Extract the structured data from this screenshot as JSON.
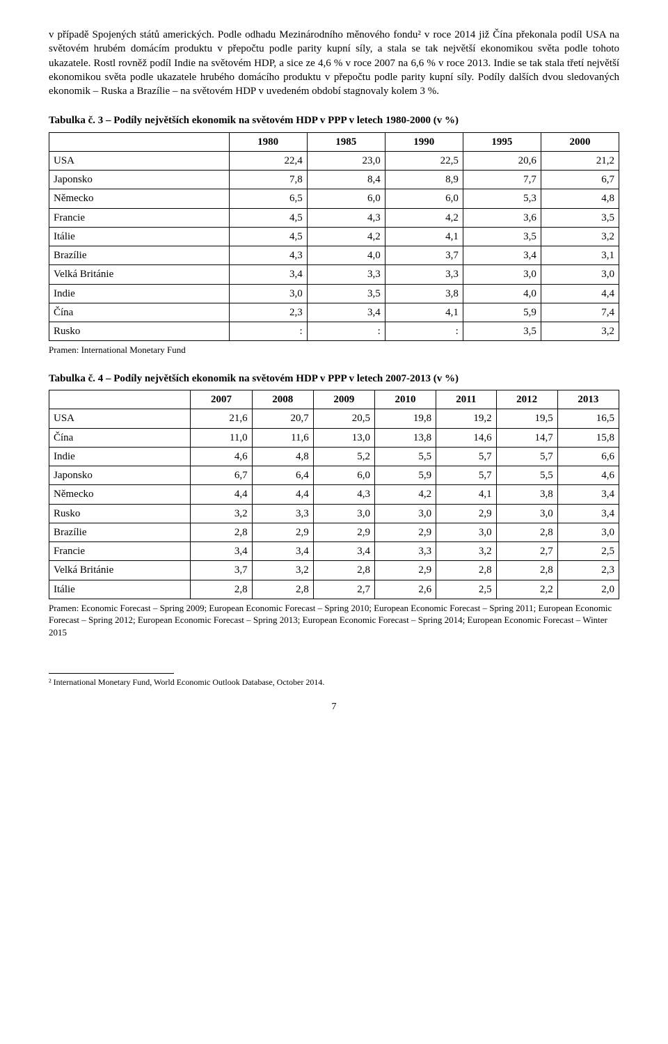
{
  "paragraph": "v případě Spojených států amerických. Podle odhadu Mezinárodního měnového fondu² v roce 2014 již Čína překonala podíl USA na světovém hrubém domácím produktu v přepočtu podle parity kupní síly, a stala se tak největší ekonomikou světa podle tohoto ukazatele. Rostl rovněž podíl Indie na světovém HDP, a sice ze 4,6 % v roce 2007 na 6,6 % v roce 2013. Indie se tak stala třetí největší ekonomikou světa podle ukazatele hrubého domácího produktu v přepočtu podle parity kupní síly. Podíly dalších dvou sledovaných ekonomik – Ruska a Brazílie – na světovém HDP v uvedeném období stagnovaly kolem 3 %.",
  "table3": {
    "title": "Tabulka č. 3 – Podíly největších ekonomik na světovém HDP v PPP v letech 1980-2000 (v %)",
    "years": [
      "1980",
      "1985",
      "1990",
      "1995",
      "2000"
    ],
    "rows": [
      {
        "label": "USA",
        "vals": [
          "22,4",
          "23,0",
          "22,5",
          "20,6",
          "21,2"
        ]
      },
      {
        "label": "Japonsko",
        "vals": [
          "7,8",
          "8,4",
          "8,9",
          "7,7",
          "6,7"
        ]
      },
      {
        "label": "Německo",
        "vals": [
          "6,5",
          "6,0",
          "6,0",
          "5,3",
          "4,8"
        ]
      },
      {
        "label": "Francie",
        "vals": [
          "4,5",
          "4,3",
          "4,2",
          "3,6",
          "3,5"
        ]
      },
      {
        "label": "Itálie",
        "vals": [
          "4,5",
          "4,2",
          "4,1",
          "3,5",
          "3,2"
        ]
      },
      {
        "label": "Brazílie",
        "vals": [
          "4,3",
          "4,0",
          "3,7",
          "3,4",
          "3,1"
        ]
      },
      {
        "label": "Velká Británie",
        "vals": [
          "3,4",
          "3,3",
          "3,3",
          "3,0",
          "3,0"
        ]
      },
      {
        "label": "Indie",
        "vals": [
          "3,0",
          "3,5",
          "3,8",
          "4,0",
          "4,4"
        ]
      },
      {
        "label": "Čína",
        "vals": [
          "2,3",
          "3,4",
          "4,1",
          "5,9",
          "7,4"
        ]
      },
      {
        "label": "Rusko",
        "vals": [
          ":",
          ":",
          ":",
          "3,5",
          "3,2"
        ]
      }
    ],
    "source": "Pramen: International Monetary Fund"
  },
  "table4": {
    "title": "Tabulka č. 4 – Podíly největších ekonomik na světovém HDP v PPP v letech 2007-2013 (v %)",
    "years": [
      "2007",
      "2008",
      "2009",
      "2010",
      "2011",
      "2012",
      "2013"
    ],
    "rows": [
      {
        "label": "USA",
        "vals": [
          "21,6",
          "20,7",
          "20,5",
          "19,8",
          "19,2",
          "19,5",
          "16,5"
        ]
      },
      {
        "label": "Čína",
        "vals": [
          "11,0",
          "11,6",
          "13,0",
          "13,8",
          "14,6",
          "14,7",
          "15,8"
        ]
      },
      {
        "label": "Indie",
        "vals": [
          "4,6",
          "4,8",
          "5,2",
          "5,5",
          "5,7",
          "5,7",
          "6,6"
        ]
      },
      {
        "label": "Japonsko",
        "vals": [
          "6,7",
          "6,4",
          "6,0",
          "5,9",
          "5,7",
          "5,5",
          "4,6"
        ]
      },
      {
        "label": "Německo",
        "vals": [
          "4,4",
          "4,4",
          "4,3",
          "4,2",
          "4,1",
          "3,8",
          "3,4"
        ]
      },
      {
        "label": "Rusko",
        "vals": [
          "3,2",
          "3,3",
          "3,0",
          "3,0",
          "2,9",
          "3,0",
          "3,4"
        ]
      },
      {
        "label": "Brazílie",
        "vals": [
          "2,8",
          "2,9",
          "2,9",
          "2,9",
          "3,0",
          "2,8",
          "3,0"
        ]
      },
      {
        "label": "Francie",
        "vals": [
          "3,4",
          "3,4",
          "3,4",
          "3,3",
          "3,2",
          "2,7",
          "2,5"
        ]
      },
      {
        "label": "Velká Británie",
        "vals": [
          "3,7",
          "3,2",
          "2,8",
          "2,9",
          "2,8",
          "2,8",
          "2,3"
        ]
      },
      {
        "label": "Itálie",
        "vals": [
          "2,8",
          "2,8",
          "2,7",
          "2,6",
          "2,5",
          "2,2",
          "2,0"
        ]
      }
    ],
    "source": "Pramen: Economic Forecast – Spring 2009; European Economic Forecast – Spring 2010; European Economic Forecast – Spring 2011; European Economic Forecast – Spring 2012; European Economic Forecast – Spring 2013; European Economic Forecast – Spring 2014; European Economic Forecast – Winter 2015"
  },
  "footnote": "² International Monetary Fund, World Economic Outlook Database, October 2014.",
  "pagenum": "7"
}
